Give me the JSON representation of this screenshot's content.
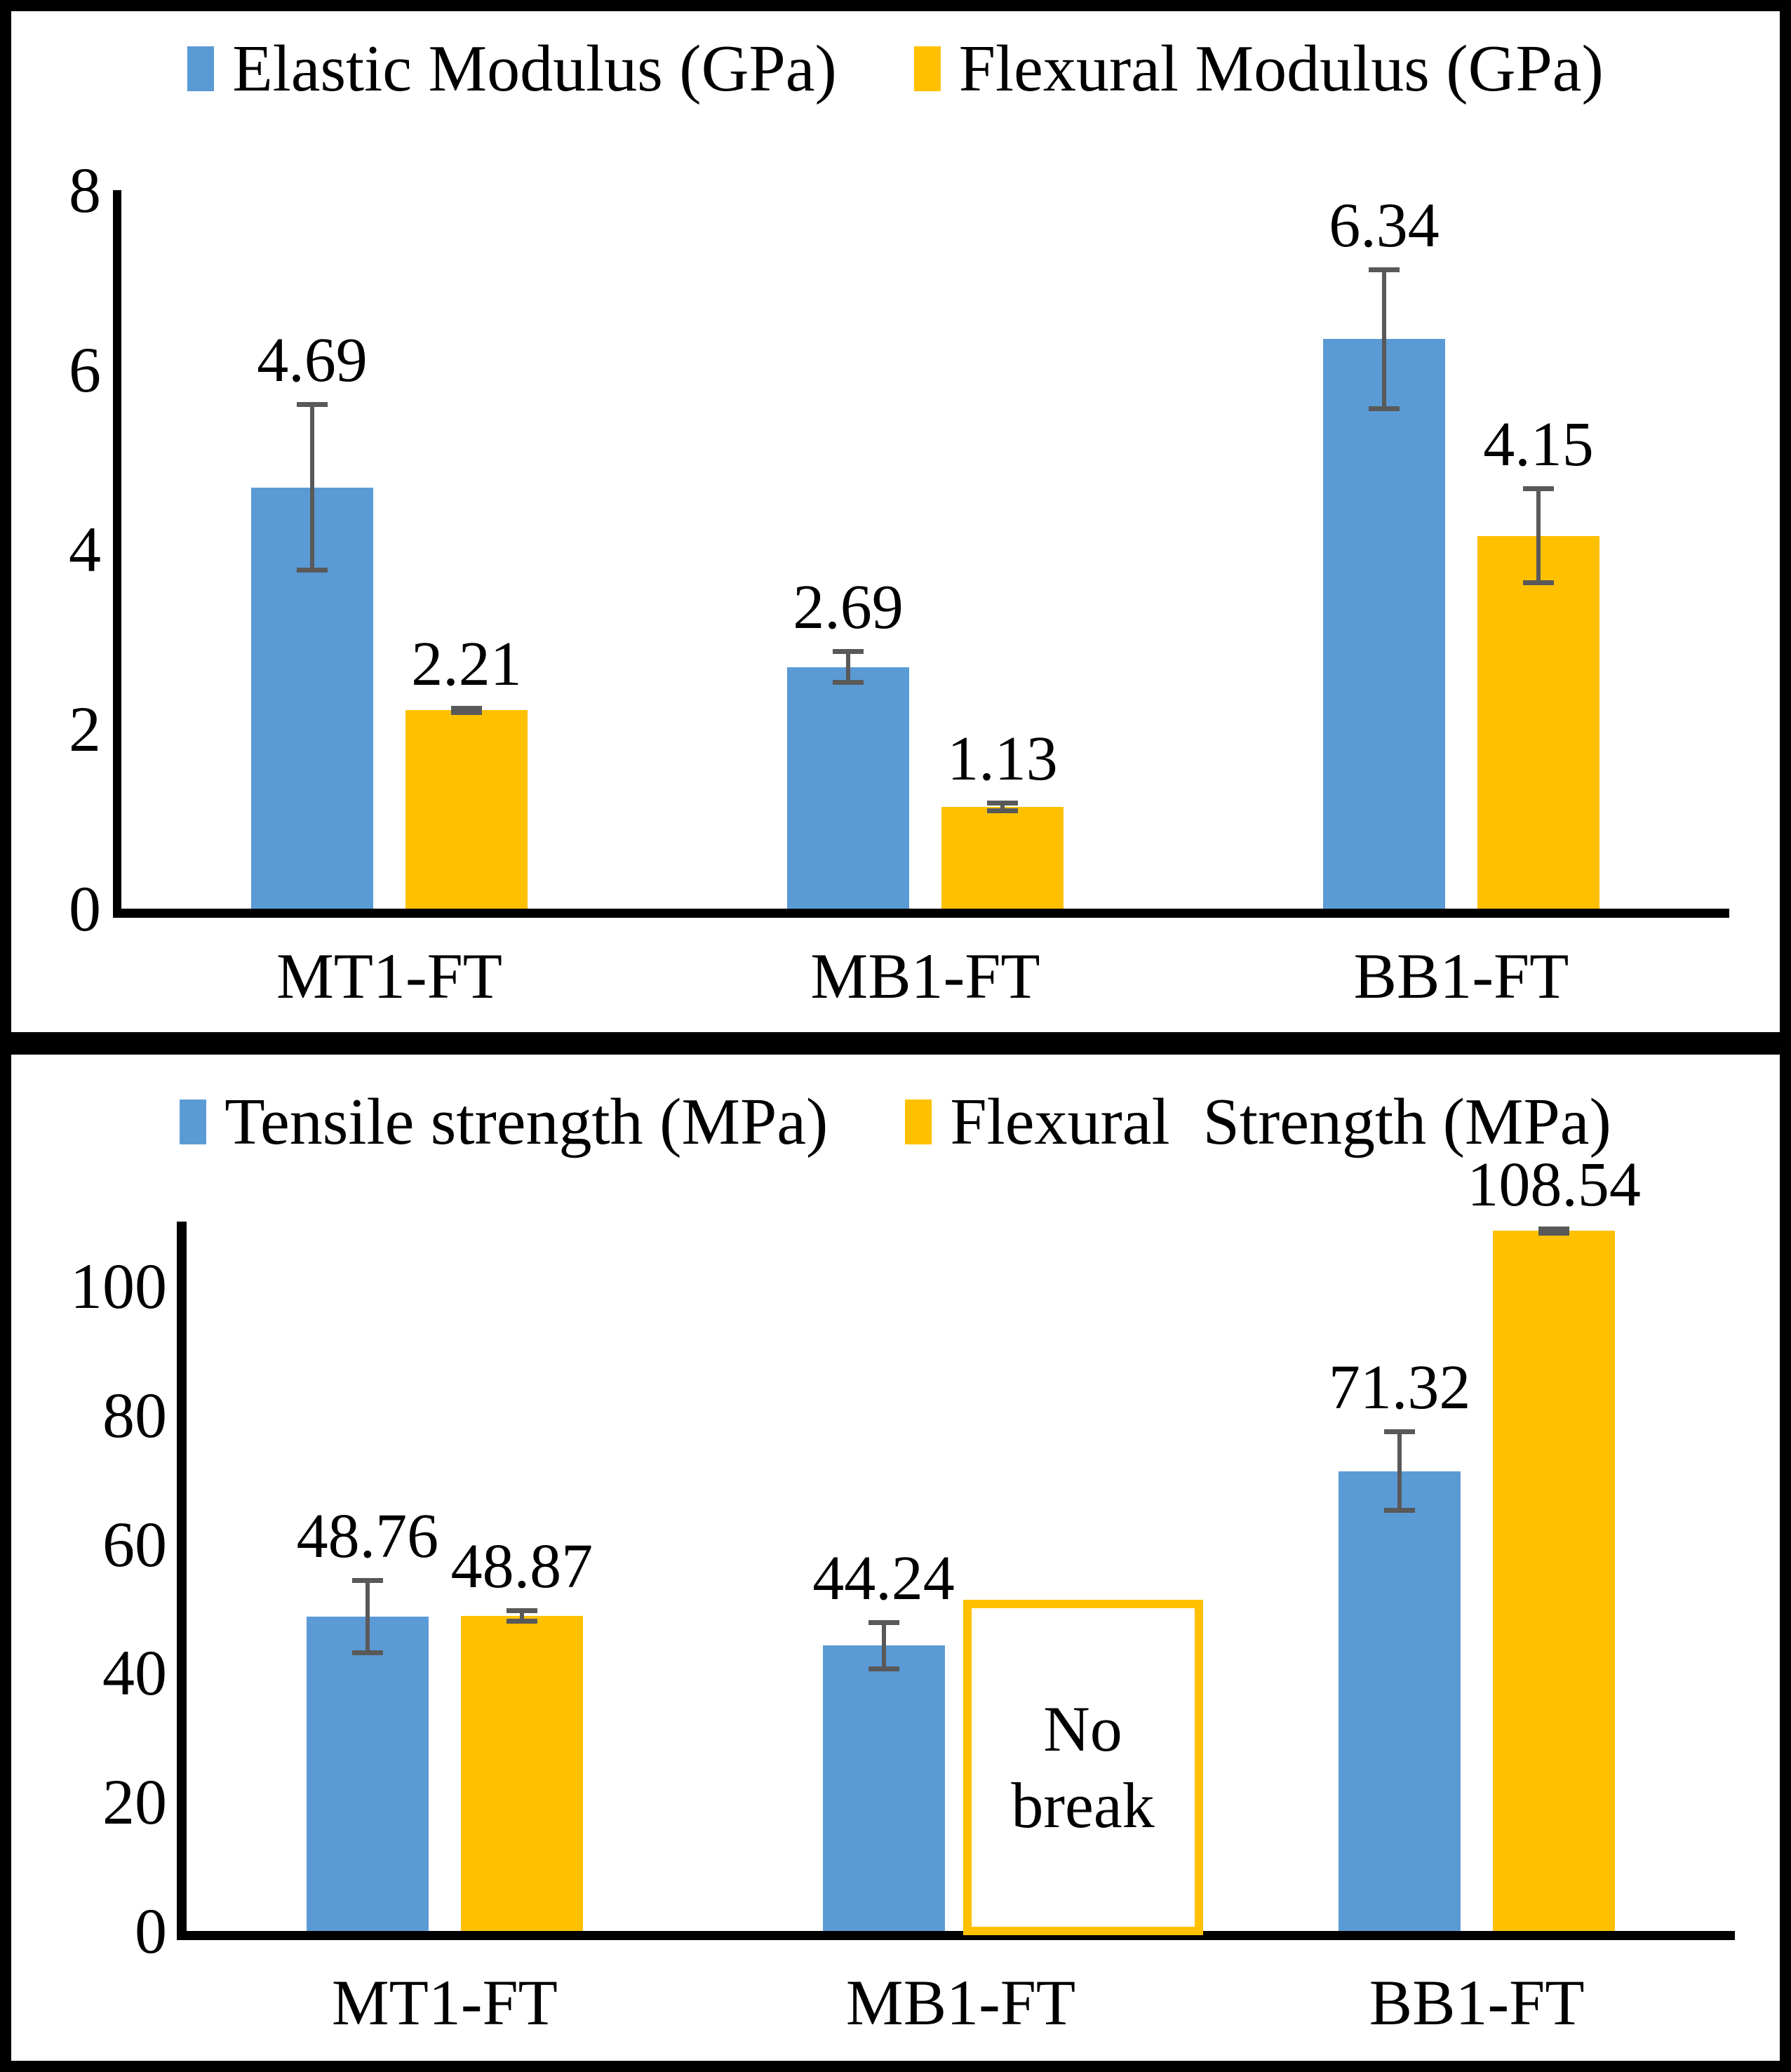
{
  "colors": {
    "series_blue": "#5B9BD5",
    "series_yellow": "#FFC000",
    "error_bar": "#595959",
    "axis": "#000000",
    "frame": "#000000",
    "background": "#FFFFFF",
    "no_break_border": "#FFC000"
  },
  "chart_data": [
    {
      "type": "bar",
      "panel": "top",
      "title": "",
      "xlabel": "",
      "ylabel": "",
      "grid": false,
      "legend_position": "top",
      "categories": [
        "MT1-FT",
        "MB1-FT",
        "BB1-FT"
      ],
      "ylim": [
        0,
        8
      ],
      "yticks": [
        8,
        6,
        4,
        2,
        0
      ],
      "series": [
        {
          "name": "Elastic Modulus (GPa)",
          "color_key": "series_blue",
          "values": [
            4.69,
            2.69,
            6.34
          ],
          "labels": [
            "4.69",
            "2.69",
            "6.34"
          ],
          "errors": [
            0.95,
            0.2,
            0.8
          ]
        },
        {
          "name": "Flexural Modulus (GPa)",
          "color_key": "series_yellow",
          "values": [
            2.21,
            1.13,
            4.15
          ],
          "labels": [
            "2.21",
            "1.13",
            "4.15"
          ],
          "errors": [
            0.05,
            0.07,
            0.55
          ]
        }
      ]
    },
    {
      "type": "bar",
      "panel": "bottom",
      "title": "",
      "xlabel": "",
      "ylabel": "",
      "grid": false,
      "legend_position": "top",
      "categories": [
        "MT1-FT",
        "MB1-FT",
        "BB1-FT"
      ],
      "ylim": [
        0,
        110
      ],
      "yticks": [
        100,
        80,
        60,
        40,
        20,
        0
      ],
      "series": [
        {
          "name": "Tensile strength (MPa)",
          "color_key": "series_blue",
          "values": [
            48.76,
            44.24,
            71.32
          ],
          "labels": [
            "48.76",
            "44.24",
            "71.32"
          ],
          "errors": [
            6.0,
            4.0,
            6.5
          ]
        },
        {
          "name": "Flexural  Strength (MPa)",
          "color_key": "series_yellow",
          "values": [
            48.87,
            null,
            108.54
          ],
          "labels": [
            "48.87",
            null,
            "108.54"
          ],
          "errors": [
            1.2,
            null,
            0.7
          ],
          "annotations": [
            {
              "category_index": 1,
              "lines": [
                "No",
                "break"
              ],
              "top_value": 52,
              "style": "outlined-box"
            }
          ]
        }
      ]
    }
  ]
}
